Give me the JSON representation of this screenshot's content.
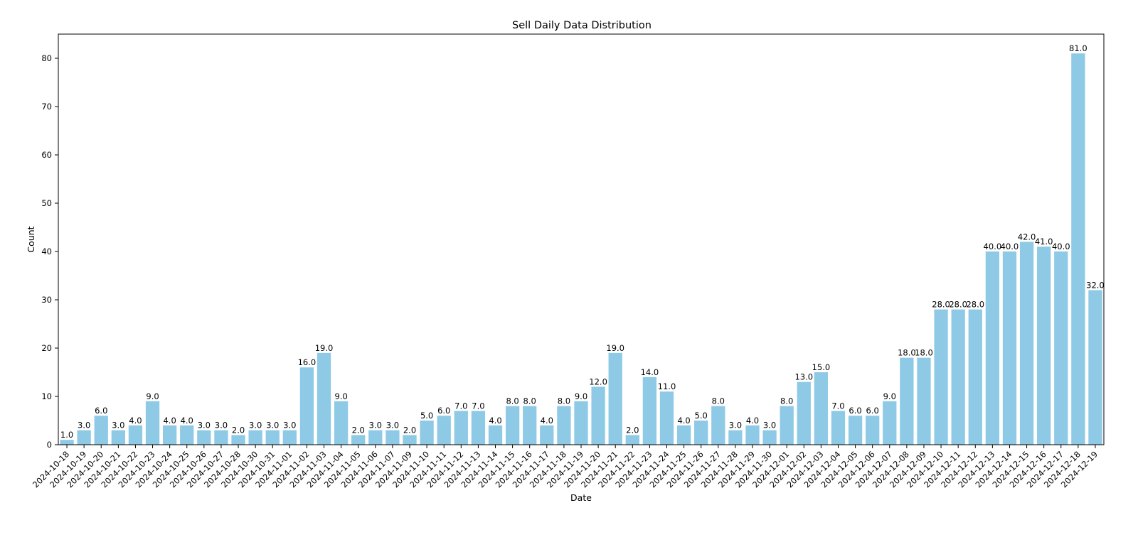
{
  "chart_data": {
    "type": "bar",
    "title": "Sell Daily Data Distribution",
    "xlabel": "Date",
    "ylabel": "Count",
    "ylim": [
      0,
      85
    ],
    "yticks": [
      0,
      10,
      20,
      30,
      40,
      50,
      60,
      70,
      80
    ],
    "grid": false,
    "bar_color": "#8ecae6",
    "categories": [
      "2024-10-18",
      "2024-10-19",
      "2024-10-20",
      "2024-10-21",
      "2024-10-22",
      "2024-10-23",
      "2024-10-24",
      "2024-10-25",
      "2024-10-26",
      "2024-10-27",
      "2024-10-28",
      "2024-10-30",
      "2024-10-31",
      "2024-11-01",
      "2024-11-02",
      "2024-11-03",
      "2024-11-04",
      "2024-11-05",
      "2024-11-06",
      "2024-11-07",
      "2024-11-09",
      "2024-11-10",
      "2024-11-11",
      "2024-11-12",
      "2024-11-13",
      "2024-11-14",
      "2024-11-15",
      "2024-11-16",
      "2024-11-17",
      "2024-11-18",
      "2024-11-19",
      "2024-11-20",
      "2024-11-21",
      "2024-11-22",
      "2024-11-23",
      "2024-11-24",
      "2024-11-25",
      "2024-11-26",
      "2024-11-27",
      "2024-11-28",
      "2024-11-29",
      "2024-11-30",
      "2024-12-01",
      "2024-12-02",
      "2024-12-03",
      "2024-12-04",
      "2024-12-05",
      "2024-12-06",
      "2024-12-07",
      "2024-12-08",
      "2024-12-09",
      "2024-12-10",
      "2024-12-11",
      "2024-12-12",
      "2024-12-13",
      "2024-12-14",
      "2024-12-15",
      "2024-12-16",
      "2024-12-17",
      "2024-12-18",
      "2024-12-19"
    ],
    "values": [
      1,
      3,
      6,
      3,
      4,
      9,
      4,
      4,
      3,
      3,
      2,
      3,
      3,
      3,
      16,
      19,
      9,
      2,
      3,
      3,
      2,
      5,
      6,
      7,
      7,
      4,
      8,
      8,
      4,
      8,
      9,
      12,
      19,
      2,
      14,
      11,
      4,
      5,
      8,
      3,
      4,
      3,
      8,
      13,
      15,
      7,
      6,
      6,
      9,
      18,
      18,
      28,
      28,
      28,
      40,
      40,
      42,
      41,
      40,
      81,
      32
    ],
    "data_labels": [
      "1.0",
      "3.0",
      "6.0",
      "3.0",
      "4.0",
      "9.0",
      "4.0",
      "4.0",
      "3.0",
      "3.0",
      "2.0",
      "3.0",
      "3.0",
      "3.0",
      "16.0",
      "19.0",
      "9.0",
      "2.0",
      "3.0",
      "3.0",
      "2.0",
      "5.0",
      "6.0",
      "7.0",
      "7.0",
      "4.0",
      "8.0",
      "8.0",
      "4.0",
      "8.0",
      "9.0",
      "12.0",
      "19.0",
      "2.0",
      "14.0",
      "11.0",
      "4.0",
      "5.0",
      "8.0",
      "3.0",
      "4.0",
      "3.0",
      "8.0",
      "13.0",
      "15.0",
      "7.0",
      "6.0",
      "6.0",
      "9.0",
      "18.0",
      "18.0",
      "28.0",
      "28.0",
      "28.0",
      "40.0",
      "40.0",
      "42.0",
      "41.0",
      "40.0",
      "81.0",
      "32.0"
    ]
  }
}
